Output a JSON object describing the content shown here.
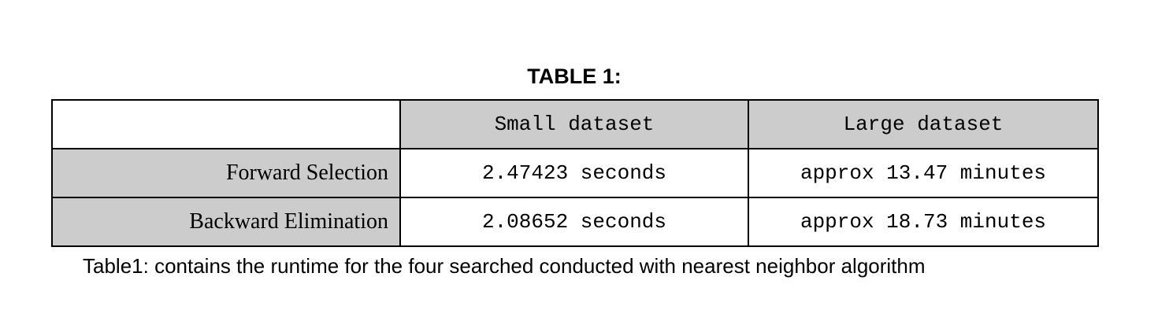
{
  "document": {
    "title": "TABLE 1:",
    "caption": "Table1: contains the runtime for the four searched conducted with nearest neighbor algorithm",
    "colors": {
      "header_fill": "#cccccc",
      "border": "#000000"
    },
    "table": {
      "corner": "",
      "columns": [
        "Small dataset",
        "Large dataset"
      ],
      "rows": [
        {
          "label": "Forward Selection",
          "values": [
            "2.47423 seconds",
            "approx 13.47 minutes"
          ]
        },
        {
          "label": "Backward Elimination",
          "values": [
            "2.08652 seconds",
            "approx 18.73 minutes"
          ]
        }
      ]
    }
  }
}
